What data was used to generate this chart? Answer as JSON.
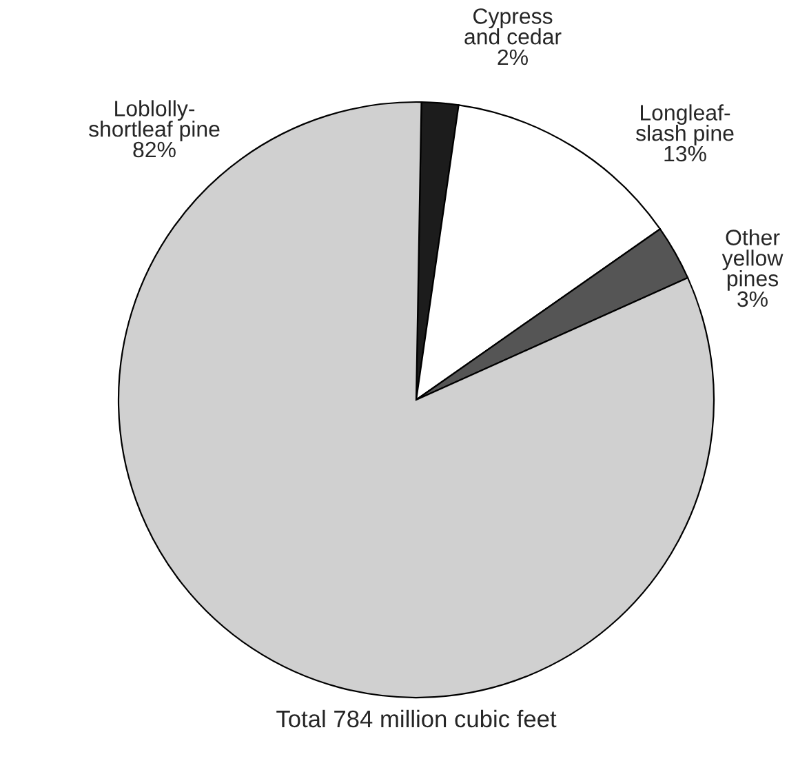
{
  "chart_data": {
    "type": "pie",
    "categories": [
      "Cypress\nand cedar",
      "Longleaf-\nslash pine",
      "Other\nyellow\npines",
      "Loblolly-\nshortleaf pine"
    ],
    "values": [
      2,
      13,
      3,
      82
    ],
    "value_labels": [
      "2%",
      "13%",
      "3%",
      "82%"
    ],
    "colors": [
      "#1c1c1c",
      "#ffffff",
      "#555555",
      "#d0d0d0"
    ],
    "annotations": [
      "Total 784 million cubic feet"
    ]
  }
}
